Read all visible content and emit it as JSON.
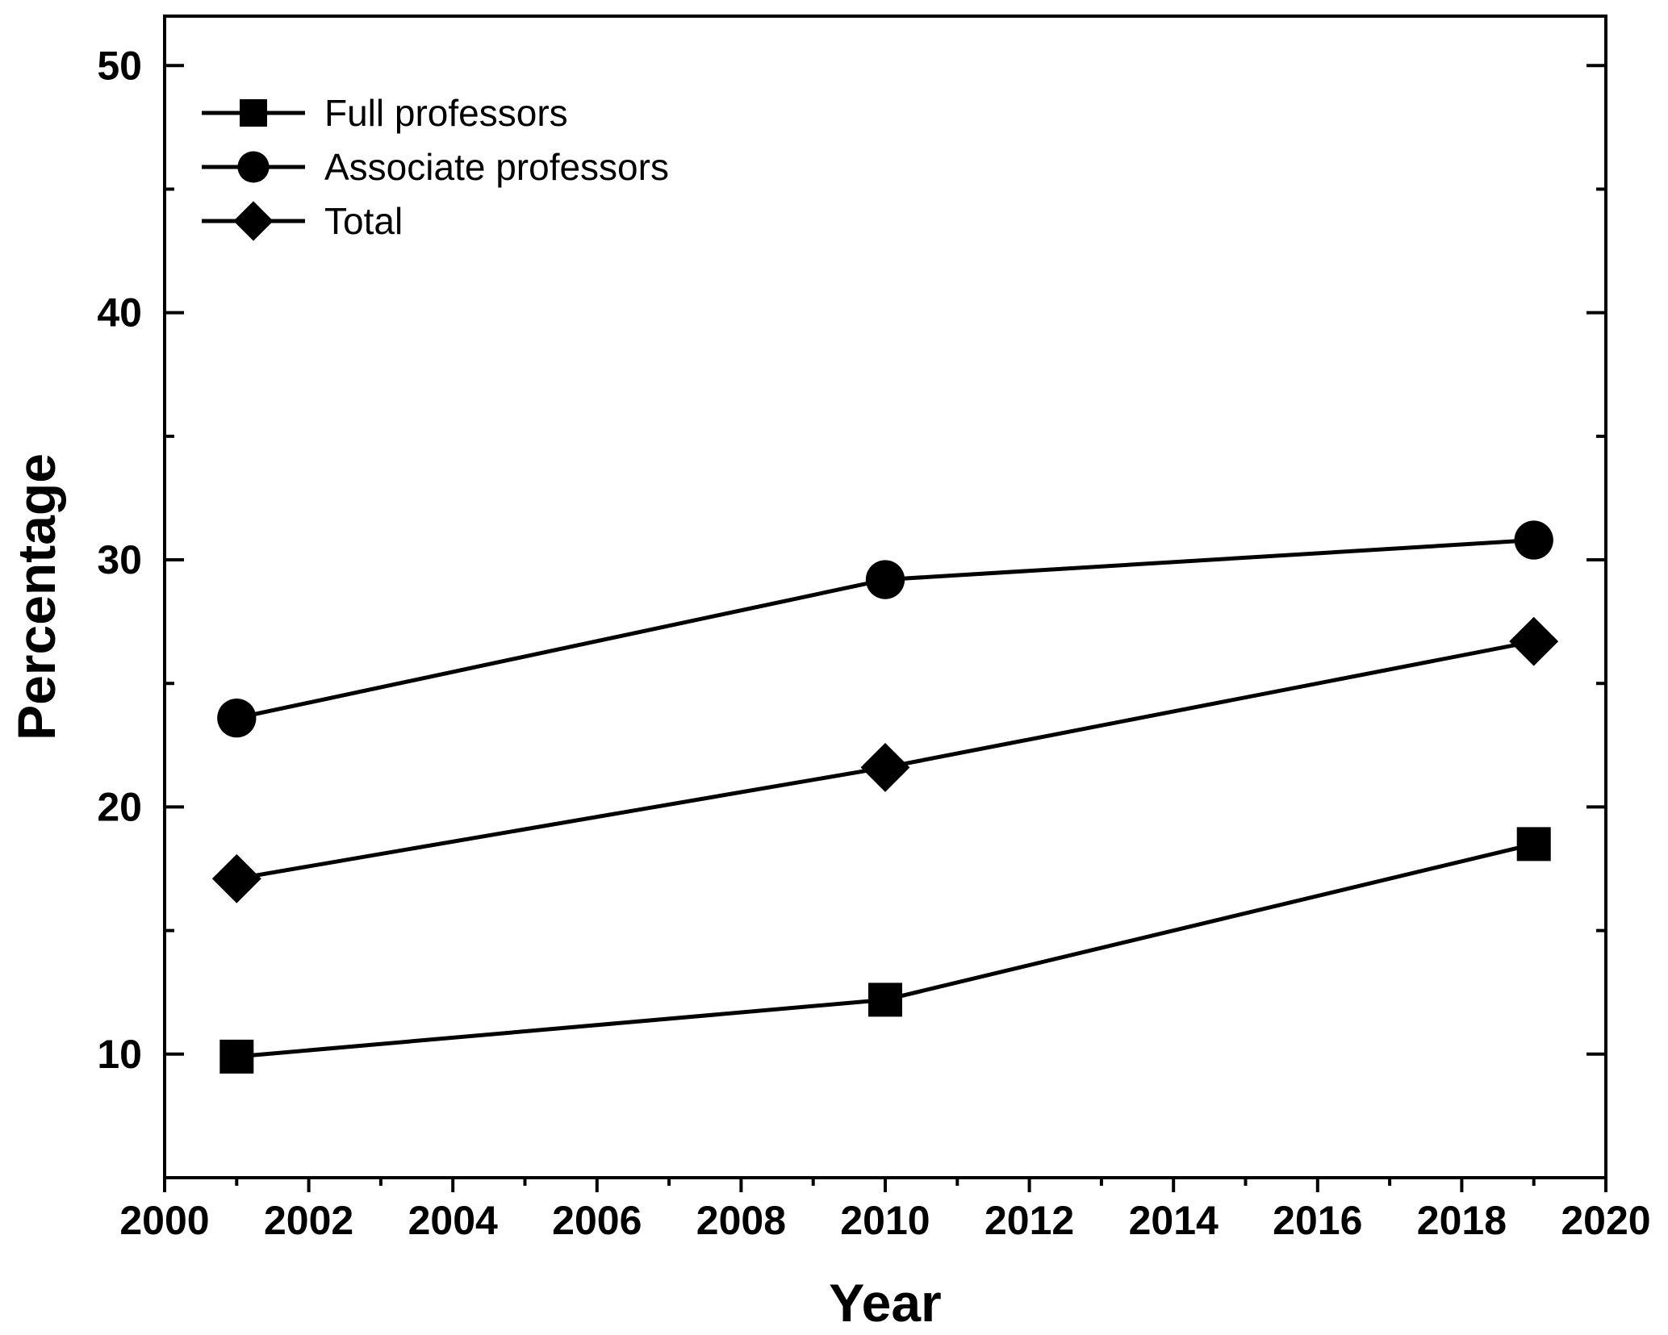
{
  "chart_data": {
    "type": "line",
    "xlabel": "Year",
    "ylabel": "Percentage",
    "xlim": [
      2000,
      2020
    ],
    "ylim": [
      5,
      52
    ],
    "xticks": [
      2000,
      2002,
      2004,
      2006,
      2008,
      2010,
      2012,
      2014,
      2016,
      2018,
      2020
    ],
    "yticks": [
      10,
      20,
      30,
      40,
      50
    ],
    "grid": false,
    "legend_position": "top-left",
    "x": [
      2001,
      2010,
      2019
    ],
    "series": [
      {
        "name": "Full professors",
        "marker": "square",
        "values": [
          9.9,
          12.2,
          18.5
        ]
      },
      {
        "name": "Associate professors",
        "marker": "circle",
        "values": [
          23.6,
          29.2,
          30.8
        ]
      },
      {
        "name": "Total",
        "marker": "diamond",
        "values": [
          17.1,
          21.6,
          26.7
        ]
      }
    ],
    "colors": {
      "line": "#000000",
      "background": "#ffffff"
    }
  }
}
